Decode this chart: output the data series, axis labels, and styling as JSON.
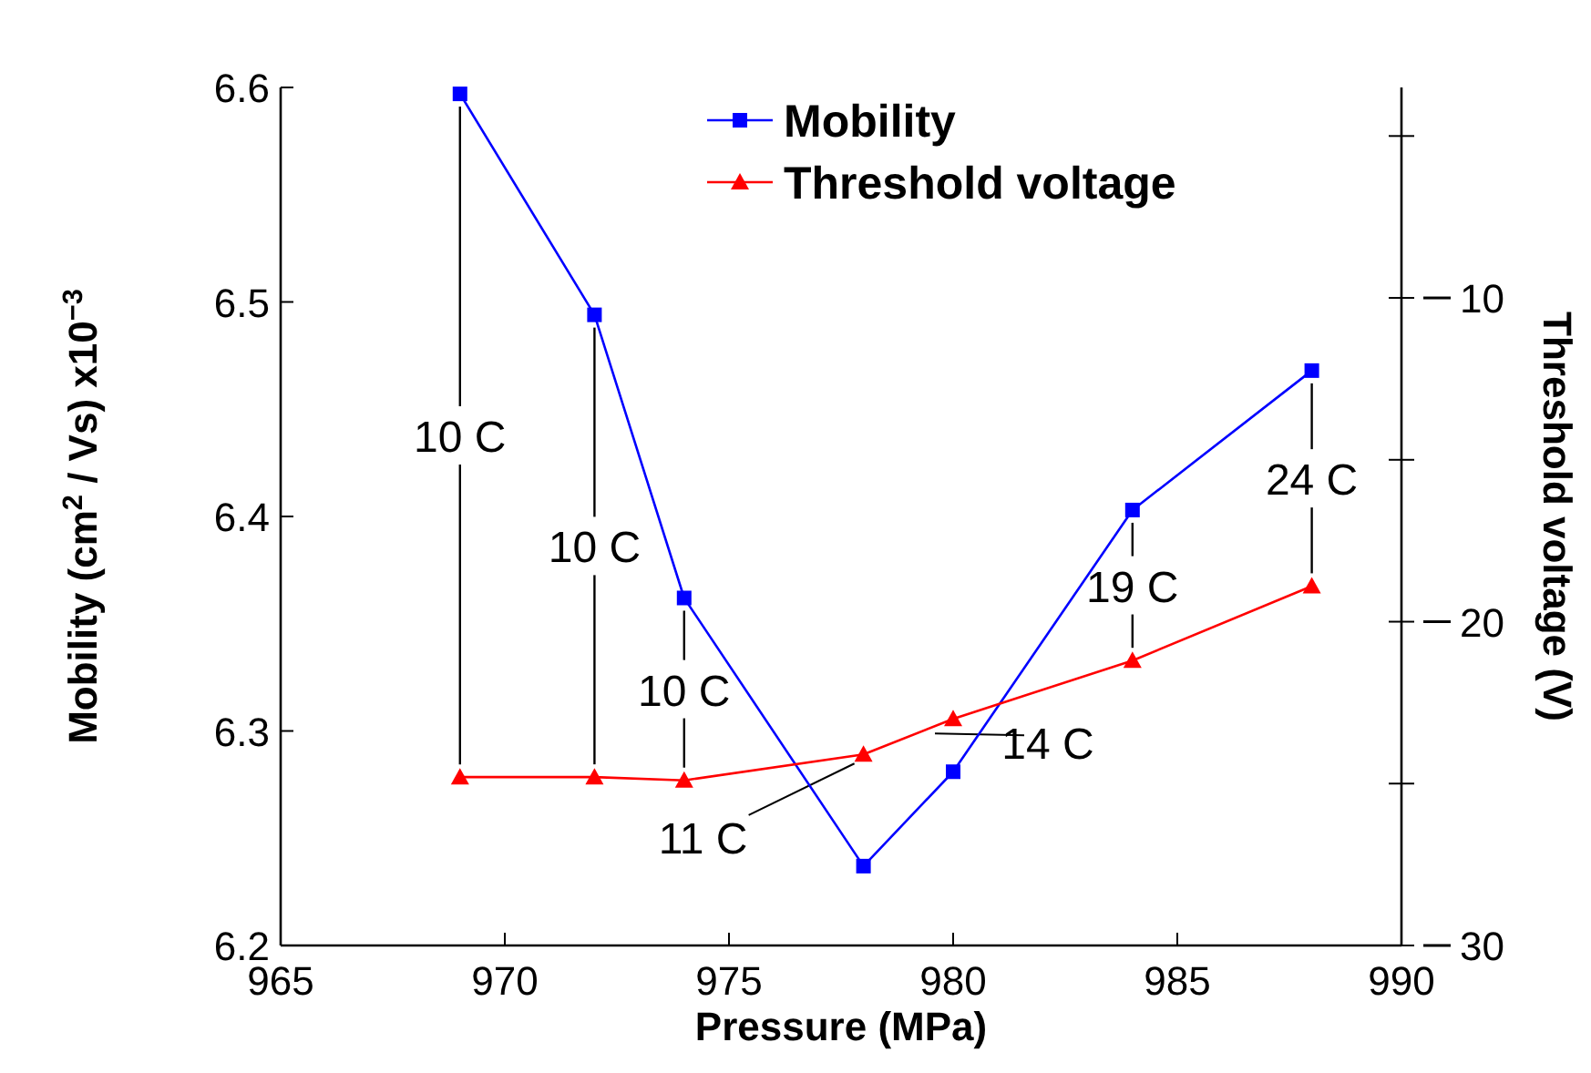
{
  "chart_data": {
    "type": "line",
    "xlabel": "Pressure (MPa)",
    "ylabel": "Mobility (cm$^{2}$ / Vs) x10$^{−3}$",
    "y2label": "Threshold voltage (V)",
    "x": [
      969,
      972,
      974,
      978,
      980,
      984,
      988
    ],
    "xlim": [
      965,
      990
    ],
    "xticks": [
      965,
      970,
      975,
      980,
      985,
      990
    ],
    "ylim": [
      6.2,
      6.6
    ],
    "yticks": [
      6.2,
      6.3,
      6.4,
      6.5,
      6.6
    ],
    "y2lim": [
      30,
      3.5
    ],
    "y2ticks": [
      {
        "value": 5,
        "label": null
      },
      10,
      {
        "value": 15,
        "label": null
      },
      20,
      {
        "value": 25,
        "label": null
      },
      30
    ],
    "series": [
      {
        "name": "Mobility",
        "color": "#0000ff",
        "marker": "square",
        "values": [
          6.597,
          6.494,
          6.362,
          6.237,
          6.281,
          6.403,
          6.468
        ]
      },
      {
        "name": "Threshold voltage",
        "color": "#ff0000",
        "marker": "triangle",
        "axis": "y2",
        "values": [
          24.8,
          24.8,
          24.9,
          24.1,
          23.0,
          21.2,
          18.9
        ]
      }
    ],
    "annotations": [
      {
        "text": "10 C",
        "x": 969,
        "y": 6.597
      },
      {
        "text": "10 C",
        "x": 972,
        "y": 6.494
      },
      {
        "text": "10 C",
        "x": 974,
        "y": 6.362
      },
      {
        "text": "11 C",
        "x": 978,
        "y": 6.237
      },
      {
        "text": "14 C",
        "x": 980,
        "y": 6.281
      },
      {
        "text": "19 C",
        "x": 984,
        "y": 6.403
      },
      {
        "text": "24 C",
        "x": 988,
        "y": 6.468
      }
    ],
    "legend": "top",
    "grid": false
  }
}
